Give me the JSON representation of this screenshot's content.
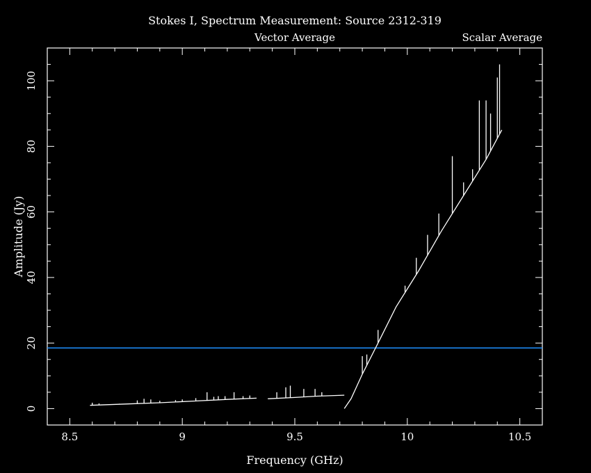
{
  "chart_data": {
    "type": "line",
    "title": "Stokes I, Spectrum Measurement: Source 2312-319",
    "xlabel": "Frequency (GHz)",
    "ylabel": "Amplitude (Jy)",
    "xlim": [
      8.4,
      10.6
    ],
    "ylim": [
      -5,
      110
    ],
    "xticks": [
      8.5,
      9,
      9.5,
      10,
      10.5
    ],
    "xtick_labels": [
      "8.5",
      "9",
      "9.5",
      "10",
      "10.5"
    ],
    "yticks": [
      0,
      20,
      40,
      60,
      80,
      100
    ],
    "ytick_labels": [
      "0",
      "20",
      "40",
      "60",
      "80",
      "100"
    ],
    "grid": false,
    "legend_position": "top",
    "series": [
      {
        "name": "Vector Average",
        "color": "#00ff00",
        "style": "legend-only",
        "segments": [
          [
            [
              8.59,
              1.0
            ],
            [
              8.75,
              1.4
            ],
            [
              8.9,
              1.8
            ],
            [
              9.05,
              2.3
            ],
            [
              9.2,
              2.8
            ],
            [
              9.33,
              3.2
            ]
          ],
          [
            [
              9.38,
              3.0
            ],
            [
              9.5,
              3.4
            ],
            [
              9.6,
              3.8
            ],
            [
              9.72,
              4.1
            ]
          ],
          [
            [
              9.72,
              0.0
            ],
            [
              9.75,
              3.0
            ],
            [
              9.8,
              10.5
            ],
            [
              9.87,
              20.0
            ],
            [
              9.95,
              31.0
            ],
            [
              10.05,
              42.0
            ],
            [
              10.15,
              54.0
            ],
            [
              10.25,
              65.0
            ],
            [
              10.35,
              76.0
            ],
            [
              10.42,
              85.0
            ]
          ]
        ],
        "spikes": [
          [
            8.6,
            1.8
          ],
          [
            8.63,
            1.6
          ],
          [
            8.72,
            1.5
          ],
          [
            8.8,
            2.5
          ],
          [
            8.83,
            3.0
          ],
          [
            8.86,
            2.8
          ],
          [
            8.9,
            2.4
          ],
          [
            8.97,
            2.6
          ],
          [
            9.0,
            2.8
          ],
          [
            9.06,
            3.2
          ],
          [
            9.11,
            5.0
          ],
          [
            9.14,
            3.6
          ],
          [
            9.16,
            3.8
          ],
          [
            9.19,
            3.8
          ],
          [
            9.23,
            5.0
          ],
          [
            9.27,
            3.8
          ],
          [
            9.3,
            4.0
          ],
          [
            9.42,
            5.0
          ],
          [
            9.46,
            6.5
          ],
          [
            9.48,
            7.0
          ],
          [
            9.54,
            6.0
          ],
          [
            9.59,
            6.0
          ],
          [
            9.62,
            5.0
          ],
          [
            9.8,
            16.0
          ],
          [
            9.82,
            16.5
          ],
          [
            9.87,
            24.0
          ],
          [
            9.99,
            37.5
          ],
          [
            10.04,
            46.0
          ],
          [
            10.09,
            53.0
          ],
          [
            10.14,
            59.5
          ],
          [
            10.2,
            77.0
          ],
          [
            10.25,
            69.0
          ],
          [
            10.29,
            73.0
          ],
          [
            10.32,
            94.0
          ],
          [
            10.35,
            94.0
          ],
          [
            10.37,
            90.0
          ],
          [
            10.4,
            101.0
          ],
          [
            10.41,
            105.0
          ]
        ]
      },
      {
        "name": "Scalar Average",
        "color": "#0000ff",
        "style": "legend-only",
        "segments": []
      }
    ],
    "reference_lines": [
      {
        "y": 18.5,
        "color": "#1e90ff"
      }
    ]
  }
}
